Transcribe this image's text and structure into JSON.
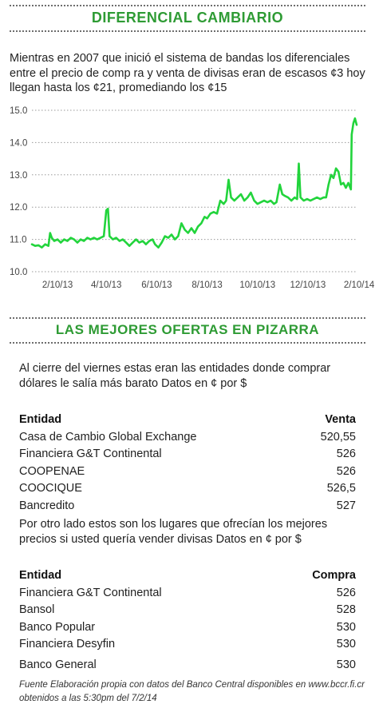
{
  "header1": "DIFERENCIAL CAMBIARIO",
  "intro1": "Mientras en 2007 que inició el sistema de bandas los diferenciales entre el precio de comp ra y venta de divisas eran de escasos ¢3 hoy llegan hasta los ¢21, promediando los ¢15",
  "chart_data": {
    "type": "line",
    "title": "",
    "xlabel": "",
    "ylabel": "",
    "ylim": [
      10.0,
      15.0
    ],
    "y_ticks": [
      "10.0",
      "11.0",
      "12.0",
      "13.0",
      "14.0",
      "15.0"
    ],
    "x_ticks": [
      "2/10/13",
      "4/10/13",
      "6/10/13",
      "8/10/13",
      "10/10/13",
      "12/10/13",
      "2/10/14"
    ],
    "x_range": [
      "2013-01-10",
      "2014-02-07"
    ],
    "grid": "horizontal dotted",
    "line_color": "#22d43c",
    "series": [
      {
        "points": [
          [
            "2013-01-10",
            10.85
          ],
          [
            "2013-01-14",
            10.8
          ],
          [
            "2013-01-18",
            10.82
          ],
          [
            "2013-01-22",
            10.75
          ],
          [
            "2013-01-26",
            10.85
          ],
          [
            "2013-01-30",
            10.8
          ],
          [
            "2013-02-01",
            11.2
          ],
          [
            "2013-02-03",
            11.05
          ],
          [
            "2013-02-06",
            10.95
          ],
          [
            "2013-02-10",
            11.0
          ],
          [
            "2013-02-14",
            10.9
          ],
          [
            "2013-02-18",
            11.0
          ],
          [
            "2013-02-22",
            10.95
          ],
          [
            "2013-02-26",
            11.05
          ],
          [
            "2013-03-02",
            11.0
          ],
          [
            "2013-03-06",
            10.9
          ],
          [
            "2013-03-10",
            11.0
          ],
          [
            "2013-03-14",
            10.95
          ],
          [
            "2013-03-18",
            11.05
          ],
          [
            "2013-03-22",
            11.0
          ],
          [
            "2013-03-26",
            11.05
          ],
          [
            "2013-03-30",
            11.0
          ],
          [
            "2013-04-03",
            11.05
          ],
          [
            "2013-04-07",
            11.1
          ],
          [
            "2013-04-10",
            11.9
          ],
          [
            "2013-04-12",
            11.95
          ],
          [
            "2013-04-14",
            11.1
          ],
          [
            "2013-04-18",
            11.0
          ],
          [
            "2013-04-22",
            11.05
          ],
          [
            "2013-04-26",
            10.95
          ],
          [
            "2013-04-30",
            11.0
          ],
          [
            "2013-05-04",
            10.9
          ],
          [
            "2013-05-08",
            10.8
          ],
          [
            "2013-05-12",
            10.9
          ],
          [
            "2013-05-16",
            11.0
          ],
          [
            "2013-05-20",
            10.9
          ],
          [
            "2013-05-24",
            10.95
          ],
          [
            "2013-05-28",
            10.85
          ],
          [
            "2013-06-01",
            10.95
          ],
          [
            "2013-06-05",
            11.0
          ],
          [
            "2013-06-08",
            10.85
          ],
          [
            "2013-06-12",
            10.75
          ],
          [
            "2013-06-16",
            10.9
          ],
          [
            "2013-06-20",
            11.1
          ],
          [
            "2013-06-24",
            11.05
          ],
          [
            "2013-06-28",
            11.15
          ],
          [
            "2013-07-02",
            11.0
          ],
          [
            "2013-07-06",
            11.1
          ],
          [
            "2013-07-10",
            11.5
          ],
          [
            "2013-07-14",
            11.3
          ],
          [
            "2013-07-18",
            11.2
          ],
          [
            "2013-07-22",
            11.35
          ],
          [
            "2013-07-26",
            11.2
          ],
          [
            "2013-07-30",
            11.4
          ],
          [
            "2013-08-03",
            11.5
          ],
          [
            "2013-08-07",
            11.7
          ],
          [
            "2013-08-10",
            11.65
          ],
          [
            "2013-08-14",
            11.8
          ],
          [
            "2013-08-18",
            11.85
          ],
          [
            "2013-08-22",
            11.8
          ],
          [
            "2013-08-26",
            12.2
          ],
          [
            "2013-08-30",
            12.1
          ],
          [
            "2013-09-02",
            12.2
          ],
          [
            "2013-09-05",
            12.85
          ],
          [
            "2013-09-08",
            12.3
          ],
          [
            "2013-09-12",
            12.2
          ],
          [
            "2013-09-16",
            12.3
          ],
          [
            "2013-09-20",
            12.4
          ],
          [
            "2013-09-24",
            12.2
          ],
          [
            "2013-09-28",
            12.3
          ],
          [
            "2013-10-02",
            12.45
          ],
          [
            "2013-10-06",
            12.2
          ],
          [
            "2013-10-10",
            12.1
          ],
          [
            "2013-10-14",
            12.15
          ],
          [
            "2013-10-18",
            12.2
          ],
          [
            "2013-10-22",
            12.15
          ],
          [
            "2013-10-26",
            12.2
          ],
          [
            "2013-10-30",
            12.1
          ],
          [
            "2013-11-02",
            12.15
          ],
          [
            "2013-11-06",
            12.7
          ],
          [
            "2013-11-09",
            12.4
          ],
          [
            "2013-11-12",
            12.35
          ],
          [
            "2013-11-16",
            12.3
          ],
          [
            "2013-11-20",
            12.2
          ],
          [
            "2013-11-24",
            12.3
          ],
          [
            "2013-11-27",
            12.25
          ],
          [
            "2013-11-29",
            13.35
          ],
          [
            "2013-12-01",
            12.3
          ],
          [
            "2013-12-05",
            12.2
          ],
          [
            "2013-12-09",
            12.25
          ],
          [
            "2013-12-13",
            12.2
          ],
          [
            "2013-12-17",
            12.25
          ],
          [
            "2013-12-21",
            12.3
          ],
          [
            "2013-12-25",
            12.25
          ],
          [
            "2013-12-29",
            12.3
          ],
          [
            "2014-01-01",
            12.3
          ],
          [
            "2014-01-04",
            12.7
          ],
          [
            "2014-01-07",
            13.0
          ],
          [
            "2014-01-10",
            12.9
          ],
          [
            "2014-01-13",
            13.2
          ],
          [
            "2014-01-16",
            13.1
          ],
          [
            "2014-01-19",
            12.7
          ],
          [
            "2014-01-22",
            12.75
          ],
          [
            "2014-01-25",
            12.6
          ],
          [
            "2014-01-28",
            12.75
          ],
          [
            "2014-01-31",
            12.55
          ],
          [
            "2014-02-01",
            14.25
          ],
          [
            "2014-02-03",
            14.6
          ],
          [
            "2014-02-05",
            14.75
          ],
          [
            "2014-02-07",
            14.55
          ]
        ]
      }
    ]
  },
  "header2": "LAS MEJORES OFERTAS EN PIZARRA",
  "intro2": "Al cierre del viernes estas eran las entidades donde comprar dólares le salía más barato Datos en ¢ por $",
  "table_venta": {
    "col_entity": "Entidad",
    "col_value": "Venta",
    "rows": [
      {
        "entity": "Casa de Cambio Global Exchange",
        "value": "520,55"
      },
      {
        "entity": "Financiera G&T Continental",
        "value": "526"
      },
      {
        "entity": "COOPENAE",
        "value": "526"
      },
      {
        "entity": "COOCIQUE",
        "value": "526,5"
      },
      {
        "entity": "Bancredito",
        "value": "527"
      }
    ]
  },
  "intro3": "Por otro lado estos son los lugares que ofrecían los mejores precios si usted quería vender divisas Datos en ¢ por $",
  "table_compra": {
    "col_entity": "Entidad",
    "col_value": "Compra",
    "rows": [
      {
        "entity": "Financiera G&T Continental",
        "value": "526"
      },
      {
        "entity": "Bansol",
        "value": "528"
      },
      {
        "entity": "Banco Popular",
        "value": "530"
      },
      {
        "entity": "Financiera Desyfin",
        "value": "530"
      },
      {
        "entity": "Banco General",
        "value": "530"
      }
    ]
  },
  "footer": "Fuente Elaboración propia con datos del Banco Central disponibles en www.bccr.fi.cr obtenidos a las 5:30pm del 7/2/14"
}
